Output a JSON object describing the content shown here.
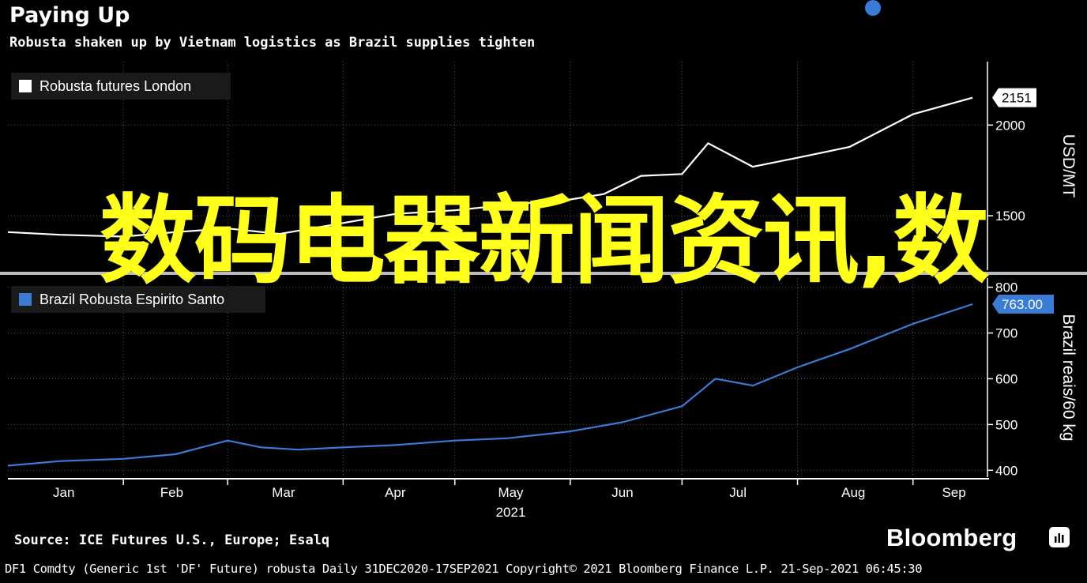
{
  "header": {
    "title": "Paying Up",
    "subtitle": "Robusta shaken up by Vietnam logistics as Brazil supplies tighten"
  },
  "overlay_text": "数码电器新闻资讯,数",
  "footer": {
    "source": "Source: ICE Futures U.S., Europe; Esalq",
    "brand": "Bloomberg",
    "brand_icon": "bloomberg-terminal-icon",
    "fine_print": "DF1 Comdty (Generic 1st 'DF' Future) robusta  Daily 31DEC2020-17SEP2021  Copyright© 2021 Bloomberg Finance L.P.  21-Sep-2021 06:45:30"
  },
  "colors": {
    "background": "#000000",
    "london_series": "#ffffff",
    "brazil_series": "#3a7bd5",
    "overlay": "#ffff1a",
    "grid": "#5a5a5a"
  },
  "chart_data": [
    {
      "type": "line",
      "series": [
        {
          "name": "Robusta futures London",
          "x": [
            "2021-01-01",
            "2021-01-15",
            "2021-02-01",
            "2021-02-15",
            "2021-03-01",
            "2021-03-15",
            "2021-04-01",
            "2021-04-15",
            "2021-05-01",
            "2021-05-15",
            "2021-06-01",
            "2021-06-10",
            "2021-06-20",
            "2021-07-01",
            "2021-07-08",
            "2021-07-20",
            "2021-08-01",
            "2021-08-15",
            "2021-09-01",
            "2021-09-17"
          ],
          "values": [
            1410,
            1395,
            1385,
            1410,
            1430,
            1400,
            1460,
            1510,
            1530,
            1560,
            1590,
            1620,
            1720,
            1730,
            1900,
            1770,
            1820,
            1880,
            2060,
            2151
          ]
        }
      ],
      "axis_label": "USD/MT",
      "yticks": [
        1500,
        2000
      ],
      "ylim": [
        1200,
        2350
      ],
      "last_value_label": "2151",
      "legend": "top-left"
    },
    {
      "type": "line",
      "series": [
        {
          "name": "Brazil Robusta Espirito Santo",
          "x": [
            "2021-01-01",
            "2021-01-15",
            "2021-02-01",
            "2021-02-15",
            "2021-03-01",
            "2021-03-10",
            "2021-03-20",
            "2021-04-01",
            "2021-04-15",
            "2021-05-01",
            "2021-05-15",
            "2021-06-01",
            "2021-06-15",
            "2021-07-01",
            "2021-07-10",
            "2021-07-20",
            "2021-08-01",
            "2021-08-15",
            "2021-09-01",
            "2021-09-17"
          ],
          "values": [
            410,
            420,
            425,
            435,
            465,
            450,
            445,
            450,
            455,
            465,
            470,
            485,
            505,
            540,
            600,
            585,
            625,
            665,
            720,
            763
          ]
        }
      ],
      "axis_label": "Brazil reais/60 kg",
      "yticks": [
        400,
        500,
        600,
        700,
        800
      ],
      "ylim": [
        385,
        820
      ],
      "last_value_label": "763.00",
      "legend": "top-left"
    }
  ],
  "x_axis": {
    "months": [
      "Jan",
      "Feb",
      "Mar",
      "Apr",
      "May",
      "Jun",
      "Jul",
      "Aug",
      "Sep"
    ],
    "year": "2021"
  }
}
